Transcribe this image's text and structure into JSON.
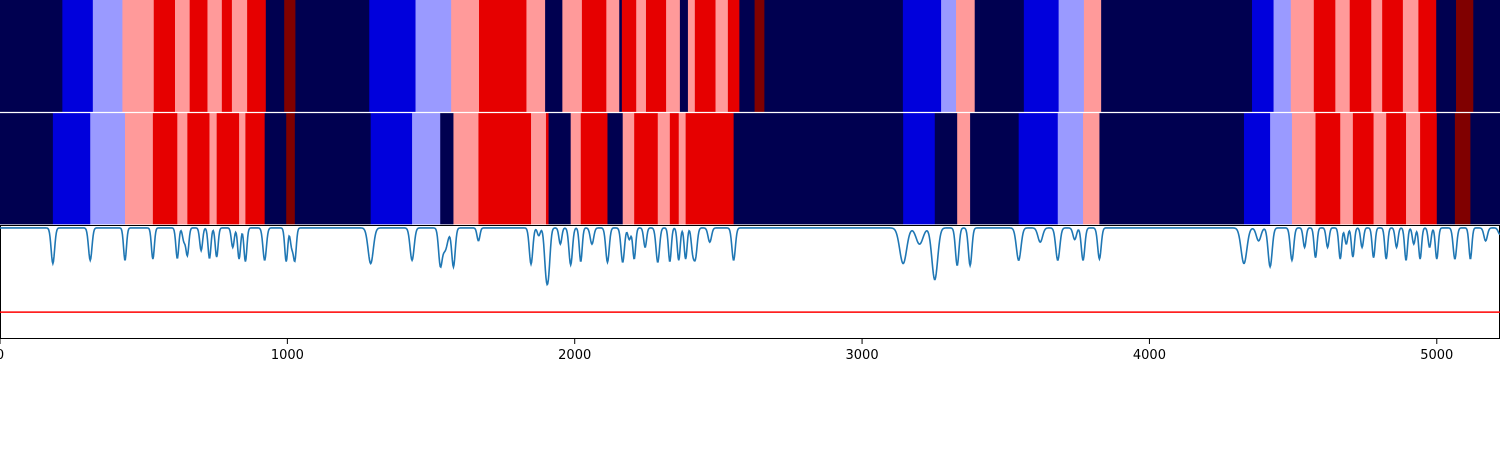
{
  "chart_data": {
    "type": "heatmap",
    "title": "",
    "xlabel": "",
    "ylabel": "",
    "xlim": [
      0,
      5220
    ],
    "x_ticks": [
      0,
      1000,
      2000,
      3000,
      4000,
      5000
    ],
    "x_tick_labels": [
      "0",
      "1000",
      "2000",
      "3000",
      "4000",
      "5000"
    ],
    "grid": false,
    "legend": "none",
    "state_colors": {
      "0": "#000050",
      "1": "#0000dc",
      "2": "#9a9aff",
      "3": "#ff9a9a",
      "4": "#e60000",
      "5": "#800000"
    },
    "rows": [
      {
        "name": "",
        "segments": [
          [
            0,
            217,
            0
          ],
          [
            217,
            323,
            1
          ],
          [
            323,
            426,
            2
          ],
          [
            426,
            535,
            3
          ],
          [
            535,
            609,
            4
          ],
          [
            609,
            660,
            3
          ],
          [
            660,
            722,
            4
          ],
          [
            722,
            772,
            3
          ],
          [
            772,
            807,
            4
          ],
          [
            807,
            860,
            3
          ],
          [
            860,
            925,
            4
          ],
          [
            925,
            989,
            0
          ],
          [
            989,
            1028,
            5
          ],
          [
            1028,
            1285,
            0
          ],
          [
            1285,
            1446,
            1
          ],
          [
            1446,
            1570,
            2
          ],
          [
            1570,
            1667,
            3
          ],
          [
            1667,
            1832,
            4
          ],
          [
            1832,
            1897,
            3
          ],
          [
            1897,
            1957,
            0
          ],
          [
            1957,
            2025,
            3
          ],
          [
            2025,
            2110,
            4
          ],
          [
            2110,
            2155,
            3
          ],
          [
            2155,
            2164,
            0
          ],
          [
            2164,
            2214,
            4
          ],
          [
            2214,
            2248,
            3
          ],
          [
            2248,
            2318,
            4
          ],
          [
            2318,
            2366,
            3
          ],
          [
            2366,
            2394,
            0
          ],
          [
            2394,
            2418,
            3
          ],
          [
            2418,
            2490,
            4
          ],
          [
            2490,
            2533,
            3
          ],
          [
            2533,
            2573,
            4
          ],
          [
            2573,
            2626,
            0
          ],
          [
            2626,
            2660,
            5
          ],
          [
            2660,
            3142,
            0
          ],
          [
            3142,
            3275,
            1
          ],
          [
            3275,
            3327,
            2
          ],
          [
            3327,
            3392,
            3
          ],
          [
            3392,
            3563,
            0
          ],
          [
            3563,
            3684,
            1
          ],
          [
            3684,
            3772,
            2
          ],
          [
            3772,
            3832,
            3
          ],
          [
            3832,
            4357,
            0
          ],
          [
            4357,
            4432,
            1
          ],
          [
            4432,
            4492,
            2
          ],
          [
            4492,
            4572,
            3
          ],
          [
            4572,
            4647,
            4
          ],
          [
            4647,
            4697,
            3
          ],
          [
            4697,
            4772,
            4
          ],
          [
            4772,
            4810,
            3
          ],
          [
            4810,
            4882,
            4
          ],
          [
            4882,
            4936,
            3
          ],
          [
            4936,
            4998,
            4
          ],
          [
            4998,
            5067,
            0
          ],
          [
            5067,
            5127,
            5
          ],
          [
            5127,
            5220,
            0
          ]
        ]
      },
      {
        "name": "",
        "segments": [
          [
            0,
            184,
            0
          ],
          [
            184,
            314,
            1
          ],
          [
            314,
            435,
            2
          ],
          [
            435,
            532,
            3
          ],
          [
            532,
            617,
            4
          ],
          [
            617,
            652,
            3
          ],
          [
            652,
            729,
            4
          ],
          [
            729,
            754,
            3
          ],
          [
            754,
            832,
            4
          ],
          [
            832,
            854,
            3
          ],
          [
            854,
            921,
            4
          ],
          [
            921,
            996,
            0
          ],
          [
            996,
            1026,
            5
          ],
          [
            1026,
            1290,
            0
          ],
          [
            1290,
            1434,
            1
          ],
          [
            1434,
            1532,
            2
          ],
          [
            1532,
            1578,
            0
          ],
          [
            1578,
            1665,
            3
          ],
          [
            1665,
            1848,
            4
          ],
          [
            1848,
            1900,
            3
          ],
          [
            1900,
            1909,
            4
          ],
          [
            1909,
            1986,
            0
          ],
          [
            1986,
            2021,
            3
          ],
          [
            2021,
            2114,
            4
          ],
          [
            2114,
            2167,
            0
          ],
          [
            2167,
            2207,
            3
          ],
          [
            2207,
            2289,
            4
          ],
          [
            2289,
            2331,
            3
          ],
          [
            2331,
            2362,
            4
          ],
          [
            2362,
            2386,
            3
          ],
          [
            2386,
            2420,
            4
          ],
          [
            2420,
            2553,
            4
          ],
          [
            2553,
            3143,
            0
          ],
          [
            3143,
            3253,
            1
          ],
          [
            3253,
            3331,
            0
          ],
          [
            3331,
            3376,
            3
          ],
          [
            3376,
            3545,
            0
          ],
          [
            3545,
            3681,
            1
          ],
          [
            3681,
            3769,
            2
          ],
          [
            3769,
            3826,
            3
          ],
          [
            3826,
            4329,
            0
          ],
          [
            4329,
            4420,
            1
          ],
          [
            4420,
            4496,
            2
          ],
          [
            4496,
            4578,
            3
          ],
          [
            4578,
            4664,
            4
          ],
          [
            4664,
            4708,
            3
          ],
          [
            4708,
            4780,
            4
          ],
          [
            4780,
            4824,
            3
          ],
          [
            4824,
            4893,
            4
          ],
          [
            4893,
            4942,
            3
          ],
          [
            4942,
            5000,
            4
          ],
          [
            5000,
            5063,
            0
          ],
          [
            5063,
            5117,
            5
          ],
          [
            5117,
            5220,
            0
          ]
        ]
      }
    ],
    "line_series": {
      "name": "",
      "color": "#1f77b4",
      "baseline": 1.0,
      "ylim": [
        -0.7,
        1.03
      ],
      "dips": [
        [
          184,
          0.55,
          6
        ],
        [
          314,
          0.5,
          6
        ],
        [
          435,
          0.5,
          5
        ],
        [
          532,
          0.48,
          5
        ],
        [
          617,
          0.47,
          5
        ],
        [
          640,
          0.2,
          5
        ],
        [
          652,
          0.42,
          5
        ],
        [
          700,
          0.35,
          5
        ],
        [
          729,
          0.47,
          5
        ],
        [
          754,
          0.45,
          5
        ],
        [
          810,
          0.3,
          5
        ],
        [
          832,
          0.48,
          5
        ],
        [
          854,
          0.52,
          5
        ],
        [
          921,
          0.5,
          6
        ],
        [
          996,
          0.52,
          5
        ],
        [
          1015,
          0.28,
          5
        ],
        [
          1026,
          0.49,
          5
        ],
        [
          1290,
          0.55,
          9
        ],
        [
          1434,
          0.5,
          7
        ],
        [
          1532,
          0.5,
          6
        ],
        [
          1548,
          0.35,
          10
        ],
        [
          1578,
          0.6,
          6
        ],
        [
          1665,
          0.2,
          5
        ],
        [
          1848,
          0.56,
          6
        ],
        [
          1875,
          0.12,
          5
        ],
        [
          1900,
          0.58,
          6
        ],
        [
          1909,
          0.58,
          6
        ],
        [
          1950,
          0.25,
          5
        ],
        [
          1986,
          0.57,
          6
        ],
        [
          2021,
          0.52,
          5
        ],
        [
          2060,
          0.25,
          6
        ],
        [
          2114,
          0.53,
          6
        ],
        [
          2167,
          0.53,
          6
        ],
        [
          2190,
          0.18,
          5
        ],
        [
          2207,
          0.48,
          5
        ],
        [
          2245,
          0.3,
          5
        ],
        [
          2289,
          0.53,
          6
        ],
        [
          2331,
          0.52,
          5
        ],
        [
          2362,
          0.5,
          5
        ],
        [
          2386,
          0.48,
          5
        ],
        [
          2410,
          0.3,
          5
        ],
        [
          2420,
          0.45,
          6
        ],
        [
          2470,
          0.22,
          6
        ],
        [
          2553,
          0.5,
          6
        ],
        [
          3143,
          0.55,
          12
        ],
        [
          3200,
          0.25,
          12
        ],
        [
          3253,
          0.8,
          10
        ],
        [
          3331,
          0.58,
          6
        ],
        [
          3376,
          0.58,
          6
        ],
        [
          3545,
          0.5,
          8
        ],
        [
          3620,
          0.22,
          8
        ],
        [
          3681,
          0.5,
          7
        ],
        [
          3740,
          0.18,
          6
        ],
        [
          3769,
          0.5,
          6
        ],
        [
          3826,
          0.48,
          6
        ],
        [
          4329,
          0.55,
          10
        ],
        [
          4380,
          0.2,
          8
        ],
        [
          4420,
          0.6,
          7
        ],
        [
          4496,
          0.5,
          6
        ],
        [
          4540,
          0.3,
          5
        ],
        [
          4578,
          0.46,
          5
        ],
        [
          4620,
          0.3,
          5
        ],
        [
          4664,
          0.48,
          5
        ],
        [
          4685,
          0.25,
          5
        ],
        [
          4708,
          0.45,
          5
        ],
        [
          4740,
          0.3,
          5
        ],
        [
          4780,
          0.46,
          5
        ],
        [
          4824,
          0.48,
          5
        ],
        [
          4860,
          0.3,
          5
        ],
        [
          4893,
          0.5,
          5
        ],
        [
          4920,
          0.25,
          5
        ],
        [
          4942,
          0.48,
          5
        ],
        [
          4975,
          0.3,
          5
        ],
        [
          5000,
          0.48,
          5
        ],
        [
          5063,
          0.48,
          6
        ],
        [
          5117,
          0.48,
          5
        ],
        [
          5170,
          0.2,
          6
        ],
        [
          5220,
          0.1,
          6
        ]
      ]
    },
    "threshold": {
      "value": -0.3,
      "color": "#ff0000"
    }
  }
}
